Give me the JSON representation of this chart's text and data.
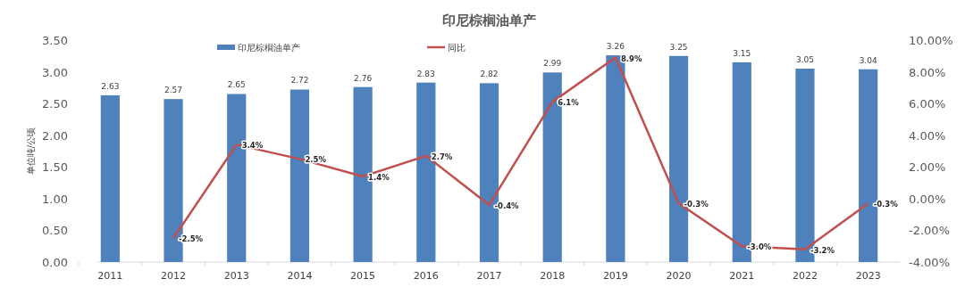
{
  "chart_data": {
    "type": "bar",
    "title": "印尼棕榈油单产",
    "ylabel": "单位吨/公顷",
    "categories": [
      "2011",
      "2012",
      "2013",
      "2014",
      "2015",
      "2016",
      "2017",
      "2018",
      "2019",
      "2020",
      "2021",
      "2022",
      "2023"
    ],
    "series": [
      {
        "name": "印尼棕榈油单产",
        "color": "#4f81bd",
        "values": [
          2.63,
          2.57,
          2.65,
          2.72,
          2.76,
          2.83,
          2.82,
          2.99,
          3.26,
          3.25,
          3.15,
          3.05,
          3.04
        ]
      },
      {
        "name": "同比",
        "type": "line",
        "axis": "y2",
        "color": "#c0504d",
        "values": [
          null,
          -2.5,
          3.4,
          2.5,
          1.4,
          2.7,
          -0.4,
          6.1,
          8.9,
          -0.3,
          -3.0,
          -3.2,
          -0.3
        ],
        "value_labels": [
          null,
          "-2.5%",
          "3.4%",
          "2.5%",
          "1.4%",
          "2.7%",
          "-0.4%",
          "6.1%",
          "8.9%",
          "-0.3%",
          "-3.0%",
          "-3.2%",
          "-0.3%"
        ]
      }
    ],
    "data_labels": true,
    "ylim": [
      0,
      3.5
    ],
    "yticks": [
      {
        "value": 0,
        "label": "0.00"
      },
      {
        "value": 0.5,
        "label": "0.50"
      },
      {
        "value": 1,
        "label": "1.00"
      },
      {
        "value": 1.5,
        "label": "1.50"
      },
      {
        "value": 2,
        "label": "2.00"
      },
      {
        "value": 2.5,
        "label": "2.50"
      },
      {
        "value": 3,
        "label": "3.00"
      },
      {
        "value": 3.5,
        "label": "3.50"
      }
    ],
    "y2lim": [
      -4,
      10
    ],
    "y2ticks": [
      {
        "value": -4,
        "label": "-4.00%"
      },
      {
        "value": -2,
        "label": "-2.00%"
      },
      {
        "value": 0,
        "label": "0.00%"
      },
      {
        "value": 2,
        "label": "2.00%"
      },
      {
        "value": 4,
        "label": "4.00%"
      },
      {
        "value": 6,
        "label": "6.00%"
      },
      {
        "value": 8,
        "label": "8.00%"
      },
      {
        "value": 10,
        "label": "10.00%"
      }
    ],
    "legend": "top",
    "grid": false,
    "marker": "none",
    "line_style": "solid"
  }
}
